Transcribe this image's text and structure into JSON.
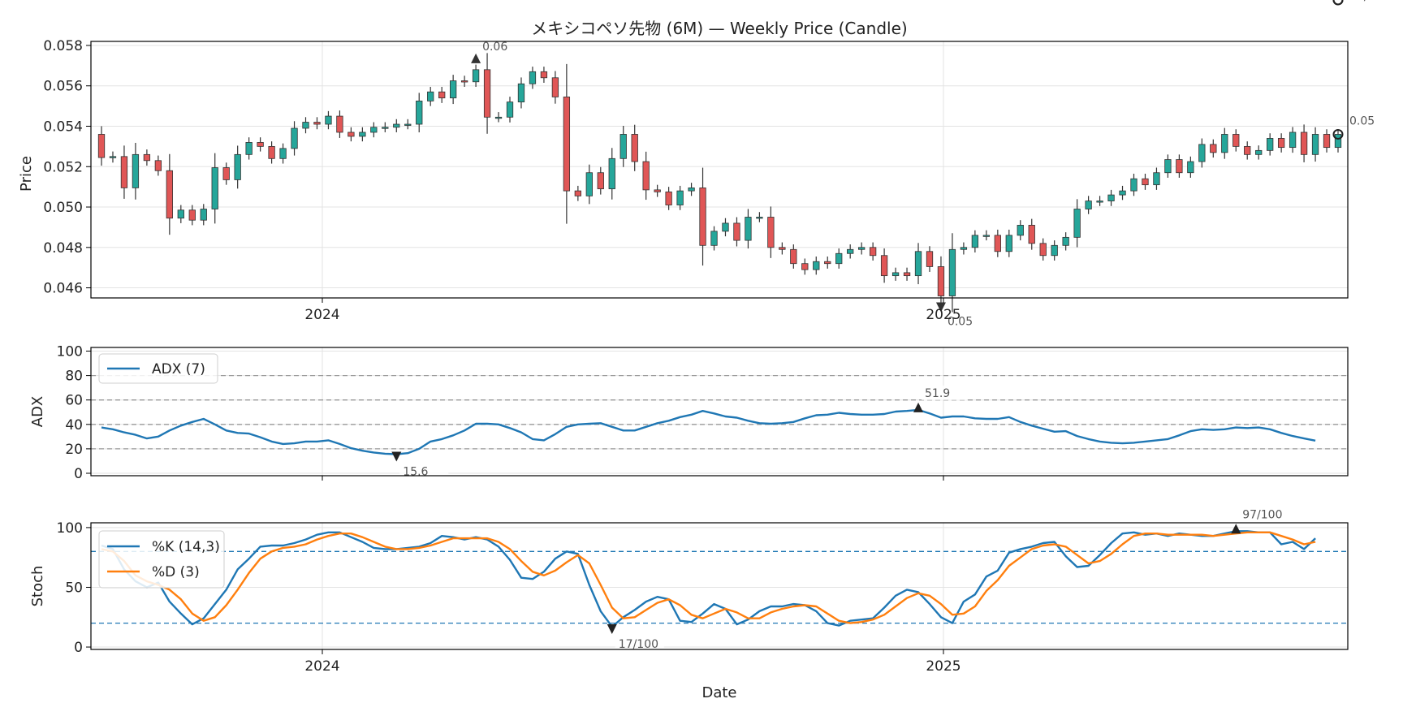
{
  "chart_data": [
    {
      "type": "candlestick",
      "title": "メキシコペソ先物 (6M) — Weekly Price (Candle)",
      "xlabel": "",
      "ylabel": "Price",
      "ylim": [
        0.0455,
        0.0582
      ],
      "y_ticks": [
        "0.046",
        "0.048",
        "0.050",
        "0.052",
        "0.054",
        "0.056",
        "0.058"
      ],
      "x_ticks": [
        "2024",
        "2025"
      ],
      "grid": true,
      "up_color": "#26a69a",
      "down_color": "#e05656",
      "annotations": {
        "high": "0.06",
        "low": "0.05",
        "last": "0.05"
      },
      "closes": [
        0.05245,
        0.0525,
        0.05095,
        0.0526,
        0.0523,
        0.0518,
        0.04945,
        0.04985,
        0.04935,
        0.0499,
        0.05195,
        0.05135,
        0.0526,
        0.0532,
        0.053,
        0.0524,
        0.0529,
        0.0539,
        0.0542,
        0.0541,
        0.0545,
        0.0537,
        0.0535,
        0.0537,
        0.05395,
        0.05395,
        0.0541,
        0.0541,
        0.05525,
        0.0557,
        0.0554,
        0.05625,
        0.0562,
        0.0568,
        0.05445,
        0.05445,
        0.0552,
        0.0561,
        0.0567,
        0.0564,
        0.05545,
        0.0508,
        0.05055,
        0.0517,
        0.0509,
        0.0524,
        0.0536,
        0.05225,
        0.05085,
        0.05075,
        0.0501,
        0.0508,
        0.05095,
        0.0481,
        0.0488,
        0.0492,
        0.04835,
        0.0495,
        0.0495,
        0.048,
        0.0479,
        0.0472,
        0.0469,
        0.0473,
        0.0472,
        0.0477,
        0.0479,
        0.048,
        0.0476,
        0.0466,
        0.04675,
        0.0466,
        0.0478,
        0.04705,
        0.0456,
        0.0479,
        0.048,
        0.0486,
        0.0486,
        0.0478,
        0.0486,
        0.0491,
        0.0482,
        0.0476,
        0.0481,
        0.0485,
        0.0499,
        0.0503,
        0.0503,
        0.0506,
        0.0508,
        0.0514,
        0.0511,
        0.0517,
        0.05235,
        0.0517,
        0.05225,
        0.0531,
        0.0527,
        0.0536,
        0.053,
        0.0526,
        0.0528,
        0.0534,
        0.05295,
        0.0537,
        0.0526,
        0.0536,
        0.05295,
        0.0536
      ]
    },
    {
      "type": "line",
      "xlabel": "",
      "ylabel": "ADX",
      "ylim": [
        -2,
        103
      ],
      "y_ticks": [
        "0",
        "20",
        "40",
        "60",
        "80",
        "100"
      ],
      "x_ticks": [
        "2024",
        "2025"
      ],
      "reference_lines": [
        20,
        40,
        60,
        80
      ],
      "series": [
        {
          "name": "ADX (7)",
          "color": "#1f77b4",
          "values": [
            37.5,
            36,
            33.5,
            31.5,
            28.5,
            30,
            35,
            39,
            42,
            44.5,
            40,
            35,
            33,
            32.5,
            29.5,
            26,
            24,
            24.5,
            26,
            26,
            27,
            24,
            20.5,
            18.5,
            17,
            16,
            15.6,
            16.5,
            20,
            26,
            28,
            31,
            35,
            40.5,
            40.5,
            40,
            37,
            33.5,
            28,
            27,
            32,
            38,
            40,
            40.5,
            41,
            38,
            35,
            35,
            38,
            41,
            43,
            46,
            48,
            51,
            49,
            46.5,
            45.5,
            43,
            41,
            40.5,
            41,
            42,
            45,
            47.5,
            48,
            49.5,
            48.5,
            48,
            48,
            48.5,
            50.5,
            51,
            51.9,
            49,
            45.5,
            46.5,
            46.5,
            45,
            44.5,
            44.5,
            46,
            42,
            39,
            36.5,
            34,
            34.5,
            30.5,
            28,
            26,
            25,
            24.5,
            25,
            26,
            27,
            28,
            31,
            34.5,
            36,
            35.5,
            36,
            37.5,
            37,
            37.5,
            36,
            33,
            30.5,
            28.5,
            26.7
          ]
        }
      ],
      "annotations": {
        "max": "51.9",
        "min": "15.6",
        "last": "26.7"
      }
    },
    {
      "type": "line",
      "xlabel": "Date",
      "ylabel": "Stoch",
      "ylim": [
        -2,
        104
      ],
      "y_ticks": [
        "0",
        "50",
        "100"
      ],
      "x_ticks": [
        "2024",
        "2025"
      ],
      "reference_lines": [
        20,
        80
      ],
      "series": [
        {
          "name": "%K (14,3)",
          "color": "#1f77b4",
          "values": [
            85,
            82,
            65,
            55,
            50,
            54,
            38,
            28,
            19,
            24,
            36,
            48,
            65,
            74,
            84,
            85,
            85,
            87,
            90,
            94,
            96,
            96,
            92,
            88,
            83,
            82,
            82,
            83,
            84,
            87,
            93,
            92,
            90,
            92,
            90,
            84,
            73,
            58,
            57,
            63,
            74,
            80,
            78,
            52,
            30,
            17,
            25,
            31,
            38,
            42,
            40,
            22,
            21,
            28,
            36,
            32,
            19,
            23,
            30,
            34,
            34,
            36,
            35,
            30,
            20,
            18,
            22,
            23,
            24,
            33,
            43,
            48,
            46,
            36,
            25,
            20,
            38,
            44,
            59,
            64,
            79,
            82,
            84,
            87,
            88,
            76,
            67,
            68,
            77,
            87,
            95,
            96,
            94,
            95,
            93,
            95,
            94,
            93,
            93,
            95,
            97,
            97,
            96,
            96,
            86,
            88,
            82,
            91
          ]
        },
        {
          "name": "%D (3)",
          "color": "#ff7f0e",
          "values": [
            82,
            80,
            72,
            60,
            55,
            52,
            48,
            40,
            28,
            22,
            25,
            35,
            48,
            62,
            74,
            80,
            83,
            84,
            86,
            90,
            93,
            95,
            95,
            92,
            88,
            84,
            82,
            82,
            83,
            85,
            88,
            91,
            91,
            91,
            91,
            88,
            82,
            72,
            63,
            60,
            64,
            71,
            77,
            70,
            52,
            33,
            24,
            25,
            31,
            37,
            40,
            35,
            27,
            24,
            28,
            32,
            29,
            24,
            24,
            29,
            32,
            34,
            35,
            34,
            28,
            22,
            20,
            21,
            23,
            27,
            34,
            41,
            45,
            43,
            36,
            27,
            28,
            34,
            47,
            56,
            68,
            75,
            82,
            85,
            86,
            84,
            77,
            70,
            72,
            78,
            86,
            93,
            95,
            95,
            94,
            94,
            94,
            94,
            93,
            94,
            95,
            96,
            96,
            96,
            93,
            90,
            86,
            88
          ]
        }
      ],
      "annotations": {
        "max": "97/100",
        "min": "17/100",
        "last": "91/100"
      }
    }
  ]
}
